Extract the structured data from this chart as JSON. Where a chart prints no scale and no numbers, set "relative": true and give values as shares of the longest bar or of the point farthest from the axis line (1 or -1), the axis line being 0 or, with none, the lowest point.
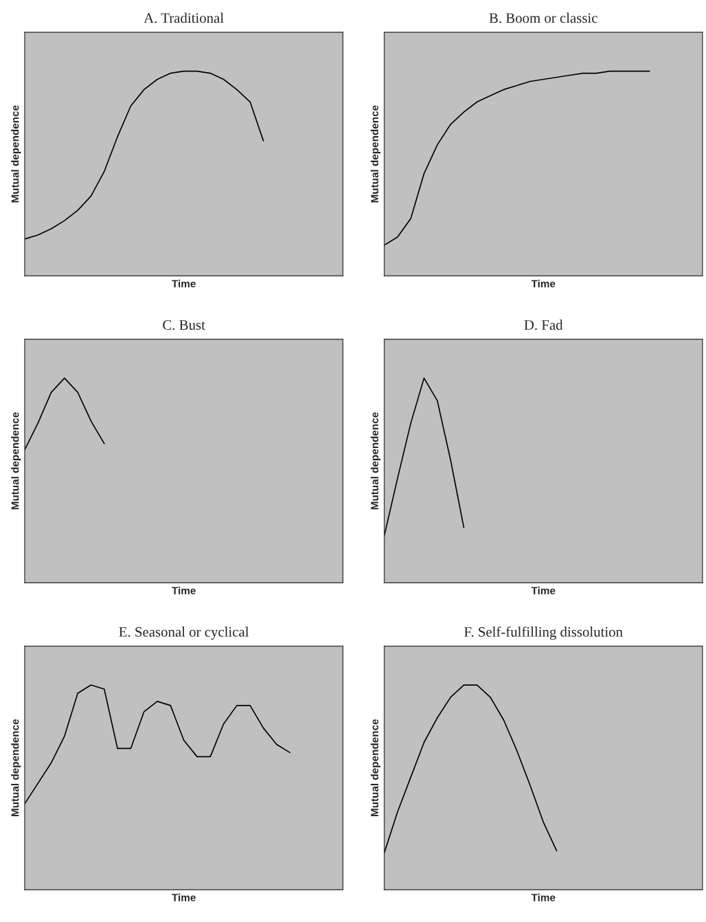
{
  "chart_data": [
    {
      "type": "line",
      "title": "A. Traditional",
      "xlabel": "Time",
      "ylabel": "Mutual dependence",
      "relative": true,
      "tick_labels": false,
      "color": "#000000",
      "categories": [
        null,
        null,
        null,
        null,
        null,
        null,
        null,
        null,
        null,
        null,
        null,
        null,
        null,
        null,
        null,
        null,
        null,
        null,
        null,
        null,
        null,
        null,
        null,
        null,
        null
      ],
      "values": [
        0.18,
        0.2,
        0.23,
        0.27,
        0.32,
        0.39,
        0.51,
        0.68,
        0.83,
        0.91,
        0.96,
        0.99,
        1,
        1,
        0.99,
        0.96,
        0.91,
        0.85,
        0.66,
        null,
        null,
        null,
        null,
        null,
        null
      ]
    },
    {
      "type": "line",
      "title": "B. Boom or classic",
      "xlabel": "Time",
      "ylabel": "Mutual dependence",
      "relative": true,
      "tick_labels": false,
      "color": "#000000",
      "categories": [
        null,
        null,
        null,
        null,
        null,
        null,
        null,
        null,
        null,
        null,
        null,
        null,
        null,
        null,
        null,
        null,
        null,
        null,
        null,
        null,
        null,
        null,
        null,
        null,
        null
      ],
      "values": [
        0.15,
        0.19,
        0.28,
        0.5,
        0.64,
        0.74,
        0.8,
        0.85,
        0.88,
        0.91,
        0.93,
        0.95,
        0.96,
        0.97,
        0.98,
        0.99,
        0.99,
        1,
        1,
        1,
        1,
        null,
        null,
        null,
        null
      ]
    },
    {
      "type": "line",
      "title": "C. Bust",
      "xlabel": "Time",
      "ylabel": "Mutual dependence",
      "relative": true,
      "tick_labels": false,
      "color": "#000000",
      "categories": [
        null,
        null,
        null,
        null,
        null,
        null,
        null,
        null,
        null,
        null,
        null,
        null,
        null,
        null,
        null,
        null,
        null,
        null,
        null,
        null,
        null,
        null,
        null,
        null,
        null
      ],
      "values": [
        0.65,
        0.78,
        0.93,
        1,
        0.93,
        0.79,
        0.68,
        null,
        null,
        null,
        null,
        null,
        null,
        null,
        null,
        null,
        null,
        null,
        null,
        null,
        null,
        null,
        null,
        null,
        null
      ]
    },
    {
      "type": "line",
      "title": "D. Fad",
      "xlabel": "Time",
      "ylabel": "Mutual dependence",
      "relative": true,
      "tick_labels": false,
      "color": "#000000",
      "categories": [
        null,
        null,
        null,
        null,
        null,
        null,
        null,
        null,
        null,
        null,
        null,
        null,
        null,
        null,
        null,
        null,
        null,
        null,
        null,
        null,
        null,
        null,
        null,
        null,
        null
      ],
      "values": [
        0.23,
        0.51,
        0.78,
        1,
        0.89,
        0.6,
        0.27,
        null,
        null,
        null,
        null,
        null,
        null,
        null,
        null,
        null,
        null,
        null,
        null,
        null,
        null,
        null,
        null,
        null,
        null
      ]
    },
    {
      "type": "line",
      "title": "E. Seasonal or cyclical",
      "xlabel": "Time",
      "ylabel": "Mutual dependence",
      "relative": true,
      "tick_labels": false,
      "color": "#000000",
      "categories": [
        null,
        null,
        null,
        null,
        null,
        null,
        null,
        null,
        null,
        null,
        null,
        null,
        null,
        null,
        null,
        null,
        null,
        null,
        null,
        null,
        null,
        null,
        null,
        null,
        null
      ],
      "values": [
        0.42,
        0.52,
        0.62,
        0.75,
        0.96,
        1,
        0.98,
        0.69,
        0.69,
        0.87,
        0.92,
        0.9,
        0.73,
        0.65,
        0.65,
        0.81,
        0.9,
        0.9,
        0.79,
        0.71,
        0.67,
        null,
        null,
        null,
        null
      ]
    },
    {
      "type": "line",
      "title": "F. Self-fulfilling dissolution",
      "xlabel": "Time",
      "ylabel": "Mutual dependence",
      "relative": true,
      "tick_labels": false,
      "color": "#000000",
      "categories": [
        null,
        null,
        null,
        null,
        null,
        null,
        null,
        null,
        null,
        null,
        null,
        null,
        null,
        null,
        null,
        null,
        null,
        null,
        null,
        null,
        null,
        null,
        null,
        null,
        null
      ],
      "values": [
        0.18,
        0.38,
        0.55,
        0.72,
        0.84,
        0.94,
        1,
        1,
        0.94,
        0.83,
        0.68,
        0.51,
        0.33,
        0.19,
        null,
        null,
        null,
        null,
        null,
        null,
        null,
        null,
        null,
        null,
        null
      ]
    }
  ]
}
